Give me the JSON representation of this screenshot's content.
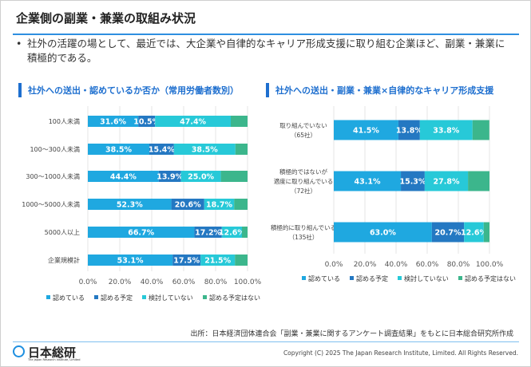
{
  "header": {
    "title": "企業側の副業・兼業の取組み状況",
    "bullet": "社外の活躍の場として、最近では、大企業や自律的なキャリア形成支援に取り組む企業ほど、副業・兼業に積極的である。"
  },
  "colors": {
    "accent": "#1e6fcf",
    "認めている": "#1fa8e0",
    "認める予定": "#2478c2",
    "検討していない": "#27c9d8",
    "認める予定はない": "#3cb68c"
  },
  "chart_data": [
    {
      "type": "bar",
      "orientation": "horizontal",
      "stacked": true,
      "title": "社外への送出・認めているか否か（常用労働者数別）",
      "categories": [
        "100人未満",
        "100～300人未満",
        "300～1000人未満",
        "1000～5000人未満",
        "5000人以上",
        "企業規模計"
      ],
      "series": [
        {
          "name": "認めている",
          "values": [
            31.6,
            38.5,
            44.4,
            52.3,
            66.7,
            53.1
          ],
          "labels": [
            "31.6%",
            "38.5%",
            "44.4%",
            "52.3%",
            "66.7%",
            "53.1%"
          ]
        },
        {
          "name": "認める予定",
          "values": [
            10.5,
            15.4,
            13.9,
            20.6,
            17.2,
            17.5
          ],
          "labels": [
            "10.5%",
            "15.4%",
            "13.9%",
            "20.6%",
            "17.2%",
            "17.5%"
          ]
        },
        {
          "name": "検討していない",
          "values": [
            47.4,
            38.5,
            25.0,
            18.7,
            12.6,
            21.5
          ],
          "labels": [
            "47.4%",
            "38.5%",
            "25.0%",
            "18.7%",
            "12.6%",
            "21.5%"
          ]
        },
        {
          "name": "認める予定はない",
          "values": [
            10.5,
            7.7,
            16.7,
            8.4,
            3.5,
            7.9
          ]
        }
      ],
      "xlim": [
        0,
        100
      ],
      "xticks": [
        "0.0%",
        "20.0%",
        "40.0%",
        "60.0%",
        "80.0%",
        "100.0%"
      ],
      "grid": true,
      "legend": "bottom"
    },
    {
      "type": "bar",
      "orientation": "horizontal",
      "stacked": true,
      "title": "社外への送出・副業・兼業×自律的なキャリア形成支援",
      "categories": [
        [
          "取り組んでいない",
          "（65社）"
        ],
        [
          "積極的ではないが",
          "適度に取り組んでいる",
          "（72社）"
        ],
        [
          "積極的に取り組んでいる",
          "（135社）"
        ]
      ],
      "series": [
        {
          "name": "認めている",
          "values": [
            41.5,
            43.1,
            63.0
          ],
          "labels": [
            "41.5%",
            "43.1%",
            "63.0%"
          ]
        },
        {
          "name": "認める予定",
          "values": [
            13.8,
            15.3,
            20.7
          ],
          "labels": [
            "13.8%",
            "15.3%",
            "20.7%"
          ]
        },
        {
          "name": "検討していない",
          "values": [
            33.8,
            27.8,
            12.6
          ],
          "labels": [
            "33.8%",
            "27.8%",
            "12.6%"
          ]
        },
        {
          "name": "認める予定はない",
          "values": [
            10.8,
            13.9,
            3.7
          ]
        }
      ],
      "xlim": [
        0,
        100
      ],
      "xticks": [
        "0.0%",
        "20.0%",
        "40.0%",
        "60.0%",
        "80.0%",
        "100.0%"
      ],
      "grid": true,
      "legend": "bottom"
    }
  ],
  "footer": {
    "source": "出所：日本経済団体連合会「副業・兼業に関するアンケート調査結果」をもとに日本総合研究所作成",
    "logo_name": "日本総研",
    "logo_sub": "The Japan Research Institute, Limited",
    "copyright": "Copyright (C) 2025 The Japan Research Institute, Limited. All Rights Reserved."
  }
}
